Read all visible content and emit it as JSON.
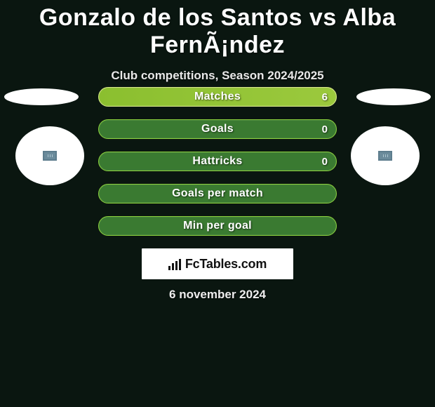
{
  "title": "Gonzalo de los Santos vs Alba FernÃ¡ndez",
  "subtitle": "Club competitions, Season 2024/2025",
  "date": "6 november 2024",
  "logo_text": "FcTables.com",
  "colors": {
    "background": "#0a1610",
    "bar_fill": "#3a7a31",
    "bar_border": "#8bd13c",
    "bar_highlight_from": "#8bbf2f",
    "bar_highlight_to": "#9bc93d",
    "bar_highlight_border": "#d8e88a",
    "text": "#ffffff",
    "logo_bg": "#ffffff",
    "logo_text": "#111111"
  },
  "bars": [
    {
      "label": "Matches",
      "value": "6",
      "highlight": true
    },
    {
      "label": "Goals",
      "value": "0",
      "highlight": false
    },
    {
      "label": "Hattricks",
      "value": "0",
      "highlight": false
    },
    {
      "label": "Goals per match",
      "value": "",
      "highlight": false
    },
    {
      "label": "Min per goal",
      "value": "",
      "highlight": false
    }
  ]
}
